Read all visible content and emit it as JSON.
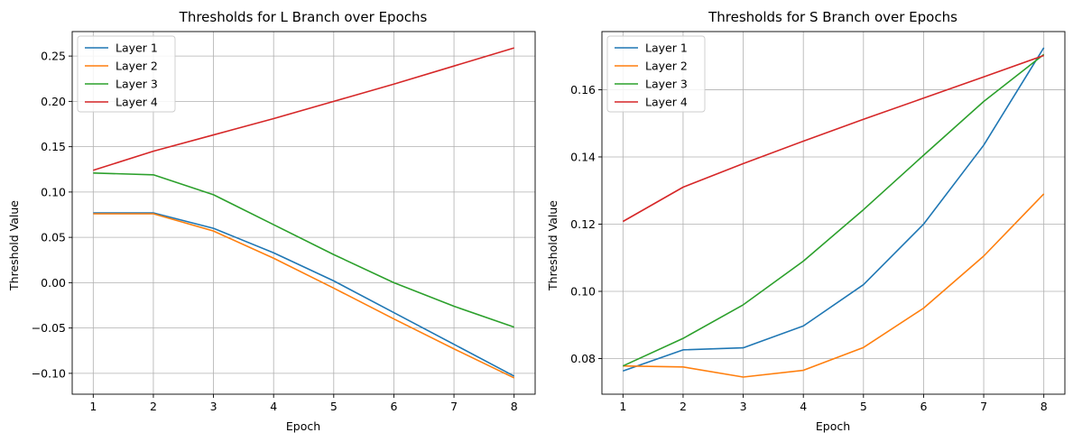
{
  "chart_data": [
    {
      "type": "line",
      "title": "Thresholds for L Branch over Epochs",
      "xlabel": "Epoch",
      "ylabel": "Threshold Value",
      "x": [
        1,
        2,
        3,
        4,
        5,
        6,
        7,
        8
      ],
      "xlim": [
        0.65,
        8.35
      ],
      "ylim": [
        -0.123,
        0.277
      ],
      "yticks": [
        -0.1,
        -0.05,
        0.0,
        0.05,
        0.1,
        0.15,
        0.2,
        0.25
      ],
      "ytick_labels": [
        "−0.10",
        "−0.05",
        "0.00",
        "0.05",
        "0.10",
        "0.15",
        "0.20",
        "0.25"
      ],
      "grid": true,
      "legend": "upper-left",
      "series": [
        {
          "name": "Layer 1",
          "color": "#1f77b4",
          "values": [
            0.077,
            0.077,
            0.06,
            0.033,
            0.002,
            -0.033,
            -0.068,
            -0.103
          ]
        },
        {
          "name": "Layer 2",
          "color": "#ff7f0e",
          "values": [
            0.076,
            0.076,
            0.057,
            0.027,
            -0.006,
            -0.04,
            -0.073,
            -0.105
          ]
        },
        {
          "name": "Layer 3",
          "color": "#2ca02c",
          "values": [
            0.121,
            0.119,
            0.097,
            0.064,
            0.031,
            0.0,
            -0.026,
            -0.049
          ]
        },
        {
          "name": "Layer 4",
          "color": "#d62728",
          "values": [
            0.124,
            0.145,
            0.163,
            0.181,
            0.2,
            0.219,
            0.239,
            0.259
          ]
        }
      ]
    },
    {
      "type": "line",
      "title": "Thresholds for S Branch over Epochs",
      "xlabel": "Epoch",
      "ylabel": "Threshold Value",
      "x": [
        1,
        2,
        3,
        4,
        5,
        6,
        7,
        8
      ],
      "xlim": [
        0.65,
        8.35
      ],
      "ylim": [
        0.0694,
        0.1773
      ],
      "yticks": [
        0.08,
        0.1,
        0.12,
        0.14,
        0.16
      ],
      "ytick_labels": [
        "0.08",
        "0.10",
        "0.12",
        "0.14",
        "0.16"
      ],
      "grid": true,
      "legend": "upper-left",
      "series": [
        {
          "name": "Layer 1",
          "color": "#1f77b4",
          "values": [
            0.0763,
            0.0826,
            0.0832,
            0.0897,
            0.102,
            0.12,
            0.1435,
            0.1725
          ]
        },
        {
          "name": "Layer 2",
          "color": "#ff7f0e",
          "values": [
            0.0778,
            0.0775,
            0.0745,
            0.0765,
            0.0833,
            0.095,
            0.1105,
            0.129
          ]
        },
        {
          "name": "Layer 3",
          "color": "#2ca02c",
          "values": [
            0.0778,
            0.086,
            0.096,
            0.109,
            0.1243,
            0.1405,
            0.1565,
            0.1705
          ]
        },
        {
          "name": "Layer 4",
          "color": "#d62728",
          "values": [
            0.1208,
            0.131,
            0.138,
            0.1447,
            0.1512,
            0.1575,
            0.1638,
            0.1702
          ]
        }
      ]
    }
  ]
}
